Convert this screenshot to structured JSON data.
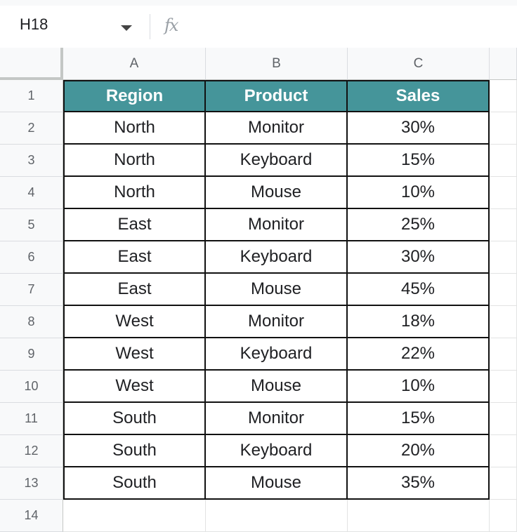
{
  "formula_bar": {
    "cell_ref": "H18",
    "fx_label": "fx",
    "formula": ""
  },
  "columns": [
    "A",
    "B",
    "C"
  ],
  "rows": [
    "1",
    "2",
    "3",
    "4",
    "5",
    "6",
    "7",
    "8",
    "9",
    "10",
    "11",
    "12",
    "13",
    "14"
  ],
  "table": {
    "header": [
      "Region",
      "Product",
      "Sales"
    ],
    "data": [
      [
        "North",
        "Monitor",
        "30%"
      ],
      [
        "North",
        "Keyboard",
        "15%"
      ],
      [
        "North",
        "Mouse",
        "10%"
      ],
      [
        "East",
        "Monitor",
        "25%"
      ],
      [
        "East",
        "Keyboard",
        "30%"
      ],
      [
        "East",
        "Mouse",
        "45%"
      ],
      [
        "West",
        "Monitor",
        "18%"
      ],
      [
        "West",
        "Keyboard",
        "22%"
      ],
      [
        "West",
        "Mouse",
        "10%"
      ],
      [
        "South",
        "Monitor",
        "15%"
      ],
      [
        "South",
        "Keyboard",
        "20%"
      ],
      [
        "South",
        "Mouse",
        "35%"
      ]
    ]
  },
  "colors": {
    "header_fill": "#45959a",
    "header_text": "#ffffff",
    "grid_line": "#e2e3e3"
  }
}
